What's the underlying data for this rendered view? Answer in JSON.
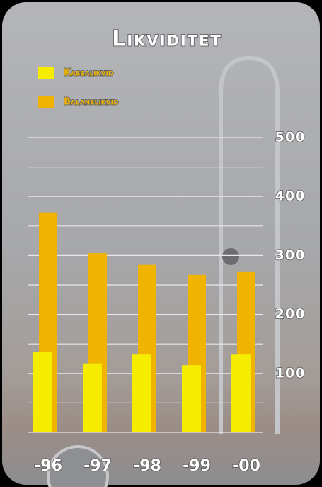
{
  "chart_data": {
    "type": "bar",
    "title": "Likviditet",
    "categories": [
      "-96",
      "-97",
      "-98",
      "-99",
      "-00"
    ],
    "series": [
      {
        "name": "Kassalikvid",
        "color": "#f5ec00",
        "values": [
          136,
          117,
          132,
          114,
          132
        ]
      },
      {
        "name": "Balanslikvid",
        "color": "#f0b400",
        "values": [
          373,
          304,
          284,
          267,
          273
        ]
      }
    ],
    "ylim": [
      0,
      500
    ],
    "yticks": [
      100,
      200,
      300,
      400,
      500
    ],
    "grid_lines": [
      0,
      50,
      100,
      150,
      200,
      250,
      300,
      350,
      400,
      450,
      500
    ],
    "grid": true
  }
}
